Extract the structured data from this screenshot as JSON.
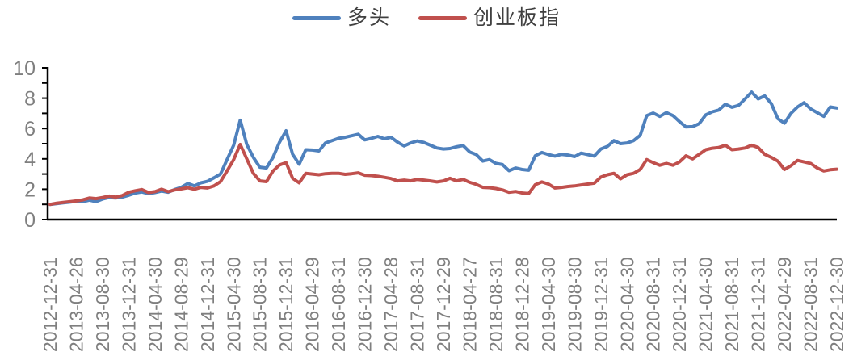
{
  "legend": {
    "items": [
      {
        "label": "多头",
        "color": "#4F81BD"
      },
      {
        "label": "创业板指",
        "color": "#C0504D"
      }
    ]
  },
  "chart_data": {
    "type": "line",
    "title": "",
    "xlabel": "",
    "ylabel": "",
    "ylim": [
      0,
      10
    ],
    "y_tick_labels": [
      0,
      2,
      4,
      6,
      8,
      10
    ],
    "y_minor_tick_step": 1,
    "grid": false,
    "legend_position": "top-center",
    "axis_color": "#000000",
    "tick_label_color": "#7F7F7F",
    "x_label_rotation_deg": 90,
    "x_tick_labels": [
      "2012-12-31",
      "2013-04-26",
      "2013-08-30",
      "2013-12-31",
      "2014-04-30",
      "2014-08-29",
      "2014-12-31",
      "2015-04-30",
      "2015-08-31",
      "2015-12-31",
      "2016-04-29",
      "2016-08-31",
      "2016-12-30",
      "2017-04-28",
      "2017-08-31",
      "2017-12-29",
      "2018-04-27",
      "2018-08-31",
      "2018-12-28",
      "2019-04-30",
      "2019-08-30",
      "2019-12-31",
      "2020-04-30",
      "2020-08-31",
      "2020-12-31",
      "2021-04-30",
      "2021-08-31",
      "2021-12-31",
      "2022-04-29",
      "2022-08-31",
      "2022-12-30"
    ],
    "points_per_labelled_tick": 4,
    "n_points": 121,
    "series": [
      {
        "name": "多头",
        "color": "#4F81BD",
        "values": [
          1.0,
          1.05,
          1.1,
          1.15,
          1.2,
          1.18,
          1.28,
          1.18,
          1.35,
          1.45,
          1.42,
          1.48,
          1.6,
          1.75,
          1.82,
          1.7,
          1.78,
          1.88,
          1.8,
          1.98,
          2.12,
          2.38,
          2.22,
          2.42,
          2.52,
          2.75,
          3.0,
          3.95,
          4.9,
          6.55,
          4.95,
          4.1,
          3.45,
          3.4,
          4.1,
          5.1,
          5.85,
          4.3,
          3.65,
          4.6,
          4.58,
          4.52,
          5.05,
          5.2,
          5.35,
          5.42,
          5.52,
          5.62,
          5.25,
          5.35,
          5.48,
          5.32,
          5.42,
          5.1,
          4.85,
          5.05,
          5.18,
          5.08,
          4.9,
          4.72,
          4.65,
          4.68,
          4.8,
          4.88,
          4.45,
          4.28,
          3.85,
          3.95,
          3.7,
          3.62,
          3.22,
          3.4,
          3.3,
          3.25,
          4.2,
          4.42,
          4.28,
          4.18,
          4.3,
          4.25,
          4.15,
          4.38,
          4.28,
          4.18,
          4.65,
          4.82,
          5.2,
          5.0,
          5.05,
          5.2,
          5.55,
          6.85,
          7.02,
          6.8,
          7.05,
          6.85,
          6.45,
          6.1,
          6.12,
          6.32,
          6.9,
          7.1,
          7.22,
          7.6,
          7.4,
          7.52,
          7.95,
          8.4,
          7.95,
          8.15,
          7.65,
          6.65,
          6.35,
          7.0,
          7.42,
          7.7,
          7.3,
          7.05,
          6.8,
          7.42,
          7.35
        ]
      },
      {
        "name": "创业板指",
        "color": "#C0504D",
        "values": [
          1.0,
          1.08,
          1.13,
          1.18,
          1.23,
          1.3,
          1.42,
          1.38,
          1.45,
          1.55,
          1.48,
          1.58,
          1.8,
          1.9,
          1.98,
          1.78,
          1.84,
          2.0,
          1.84,
          1.95,
          2.02,
          2.1,
          2.0,
          2.12,
          2.08,
          2.22,
          2.5,
          3.2,
          3.95,
          4.95,
          4.0,
          3.05,
          2.55,
          2.5,
          3.2,
          3.6,
          3.75,
          2.72,
          2.42,
          3.05,
          3.0,
          2.95,
          3.02,
          3.05,
          3.05,
          2.98,
          3.02,
          3.08,
          2.92,
          2.9,
          2.85,
          2.78,
          2.7,
          2.55,
          2.6,
          2.55,
          2.65,
          2.6,
          2.55,
          2.48,
          2.55,
          2.72,
          2.55,
          2.65,
          2.45,
          2.32,
          2.12,
          2.1,
          2.05,
          1.95,
          1.8,
          1.85,
          1.75,
          1.72,
          2.3,
          2.48,
          2.34,
          2.08,
          2.12,
          2.18,
          2.22,
          2.28,
          2.34,
          2.4,
          2.8,
          2.95,
          3.05,
          2.68,
          2.95,
          3.05,
          3.3,
          3.95,
          3.75,
          3.58,
          3.7,
          3.58,
          3.8,
          4.2,
          4.0,
          4.3,
          4.6,
          4.7,
          4.75,
          4.9,
          4.6,
          4.65,
          4.72,
          4.9,
          4.75,
          4.3,
          4.1,
          3.85,
          3.3,
          3.55,
          3.9,
          3.8,
          3.7,
          3.4,
          3.2,
          3.28,
          3.32
        ]
      }
    ]
  }
}
